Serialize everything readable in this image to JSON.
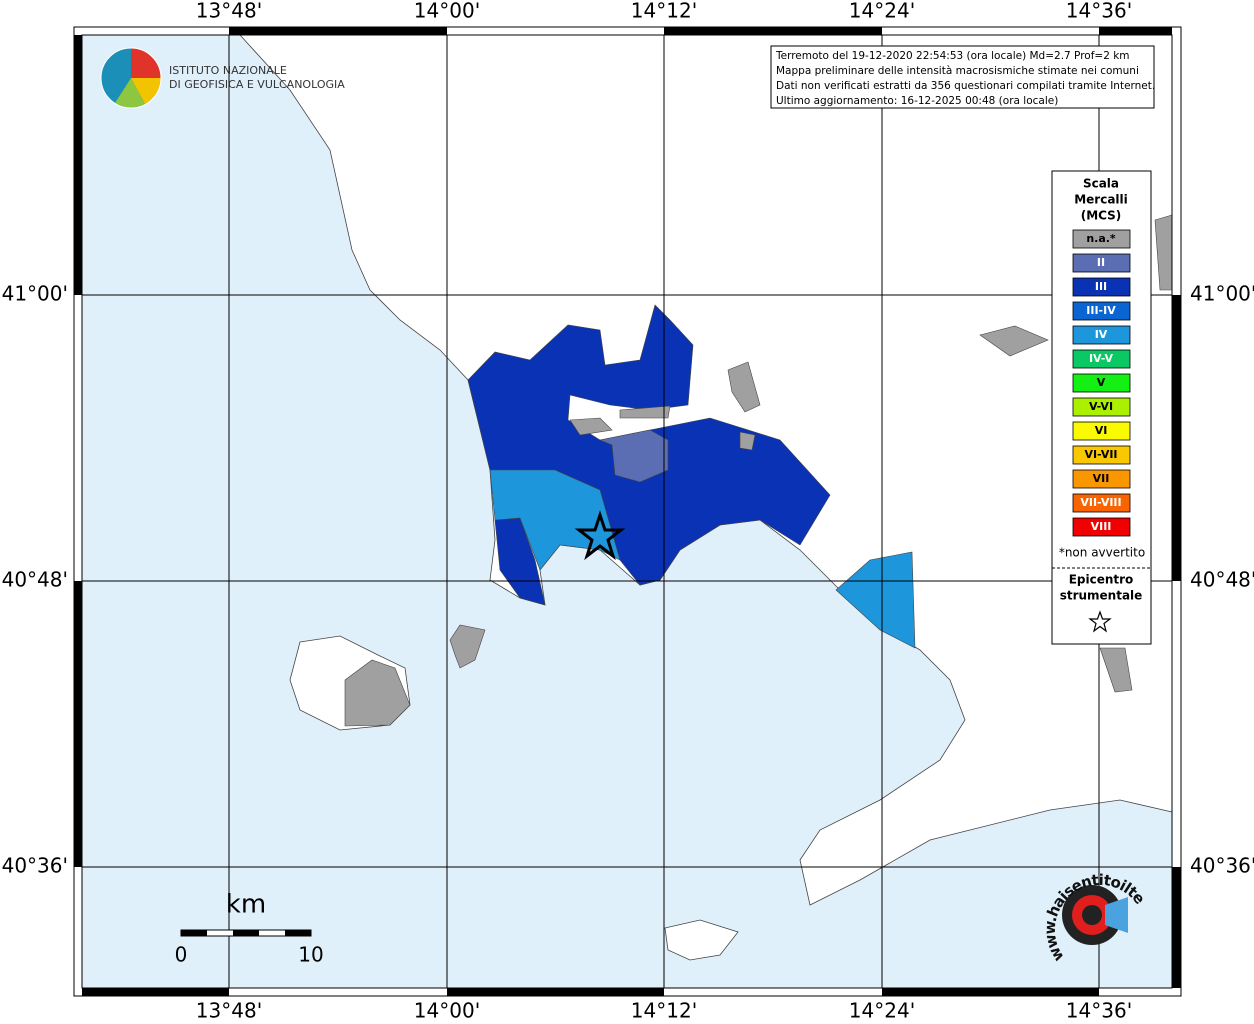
{
  "map": {
    "lon_labels": [
      "13°48'",
      "14°00'",
      "14°12'",
      "14°24'",
      "14°36'"
    ],
    "lat_labels": [
      "41°00'",
      "40°48'",
      "40°36'"
    ],
    "info_lines": [
      "Terremoto del 19-12-2020 22:54:53 (ora locale) Md=2.7 Prof=2 km",
      "Mappa preliminare delle intensità macrosismiche stimate nei comuni",
      "Dati non verificati estratti da 356 questionari compilati tramite Internet.",
      "Ultimo aggiornamento: 16-12-2025 00:48 (ora locale)"
    ],
    "logo_lines": [
      "ISTITUTO NAZIONALE",
      "DI GEOFISICA E VULCANOLOGIA"
    ],
    "legend": {
      "title_lines": [
        "Scala",
        "Mercalli",
        "(MCS)"
      ],
      "items": [
        {
          "label": "n.a.*",
          "color": "#a0a0a0"
        },
        {
          "label": "II",
          "color": "#5b6eb4"
        },
        {
          "label": "III",
          "color": "#0a32b4"
        },
        {
          "label": "III-IV",
          "color": "#0a64d2"
        },
        {
          "label": "IV",
          "color": "#1e96dc"
        },
        {
          "label": "IV-V",
          "color": "#0ac864"
        },
        {
          "label": "V",
          "color": "#14f014"
        },
        {
          "label": "V-VI",
          "color": "#aaf000"
        },
        {
          "label": "VI",
          "color": "#fafa00"
        },
        {
          "label": "VI-VII",
          "color": "#fac800"
        },
        {
          "label": "VII",
          "color": "#fa9600"
        },
        {
          "label": "VII-VIII",
          "color": "#fa6400"
        },
        {
          "label": "VIII",
          "color": "#f00000"
        }
      ],
      "footnote": "*non avvertito",
      "epicenter_lines": [
        "Epicentro",
        "strumentale"
      ]
    },
    "scale_bar": {
      "unit": "km",
      "start": "0",
      "end": "10"
    },
    "badge": "www.haisentitoilterremoto.it"
  }
}
